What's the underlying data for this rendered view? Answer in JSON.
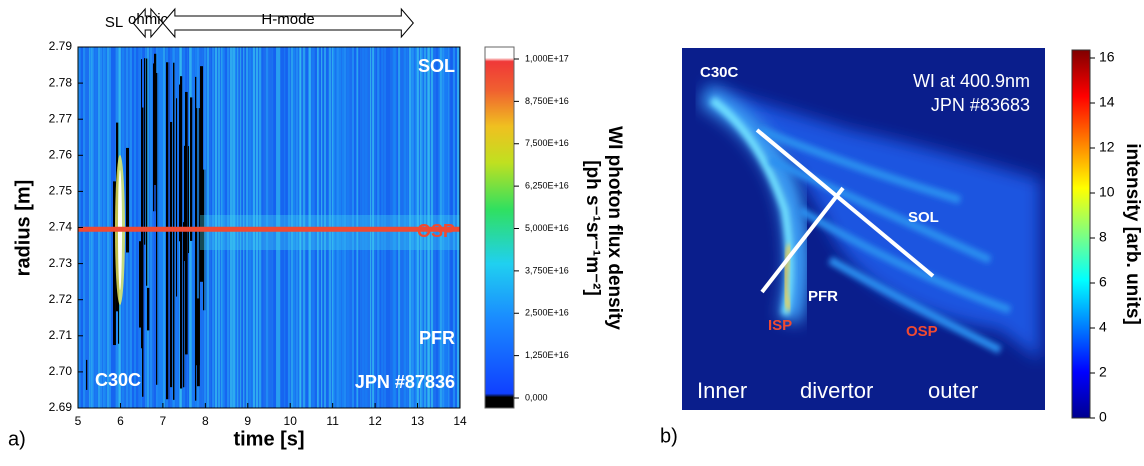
{
  "chart_data": [
    {
      "type": "heatmap",
      "panel_label": "a)",
      "xlabel": "time [s]",
      "ylabel": "radius [m]",
      "xlim": [
        5,
        14
      ],
      "xticks": [
        5,
        6,
        7,
        8,
        9,
        10,
        11,
        12,
        13,
        14
      ],
      "ylim": [
        2.69,
        2.79
      ],
      "yticks": [
        2.69,
        {
          "value": 2.7,
          "label": "2.70"
        },
        2.71,
        2.72,
        2.73,
        2.74,
        2.75,
        2.76,
        2.77,
        2.78,
        2.79
      ],
      "phases": [
        {
          "label": "SL",
          "start": 5.5,
          "end": 6.2,
          "arrow": false
        },
        {
          "label": "ohmic",
          "start": 6.3,
          "end": 7.0,
          "arrow": true
        },
        {
          "label": "H-mode",
          "start": 7.0,
          "end": 12.9,
          "arrow": true
        }
      ],
      "osp_radius": 2.7395,
      "osp_color": "#f04a32",
      "annotations": [
        "SOL",
        "OSP",
        "PFR",
        "C30C",
        "JPN #87836"
      ],
      "colorbar": {
        "label": [
          "WI photon flux density",
          "[ph s⁻¹sr⁻¹m⁻²]"
        ],
        "clim": [
          0,
          1e+17
        ],
        "ticks": [
          {
            "value": 0,
            "label": "0,000"
          },
          {
            "value": 1.25e+16,
            "label": "1,250E+16"
          },
          {
            "value": 2.5e+16,
            "label": "2,500E+16"
          },
          {
            "value": 3.75e+16,
            "label": "3,750E+16"
          },
          {
            "value": 5e+16,
            "label": "5,000E+16"
          },
          {
            "value": 6.25e+16,
            "label": "6,250E+16"
          },
          {
            "value": 7.5e+16,
            "label": "7,500E+16"
          },
          {
            "value": 8.75e+16,
            "label": "8,750E+16"
          },
          {
            "value": 1e+17,
            "label": "1,000E+17"
          }
        ]
      }
    },
    {
      "type": "image",
      "panel_label": "b)",
      "annotations": [
        "C30C",
        "WI at 400.9nm",
        "JPN #83683",
        "SOL",
        "PFR",
        "ISP",
        "OSP",
        "Inner",
        "divertor",
        "outer"
      ],
      "colorbar": {
        "label": "intensity [arb. units]",
        "clim": [
          0,
          16
        ],
        "ticks": [
          0,
          2,
          4,
          6,
          8,
          10,
          12,
          14,
          16
        ]
      }
    }
  ]
}
